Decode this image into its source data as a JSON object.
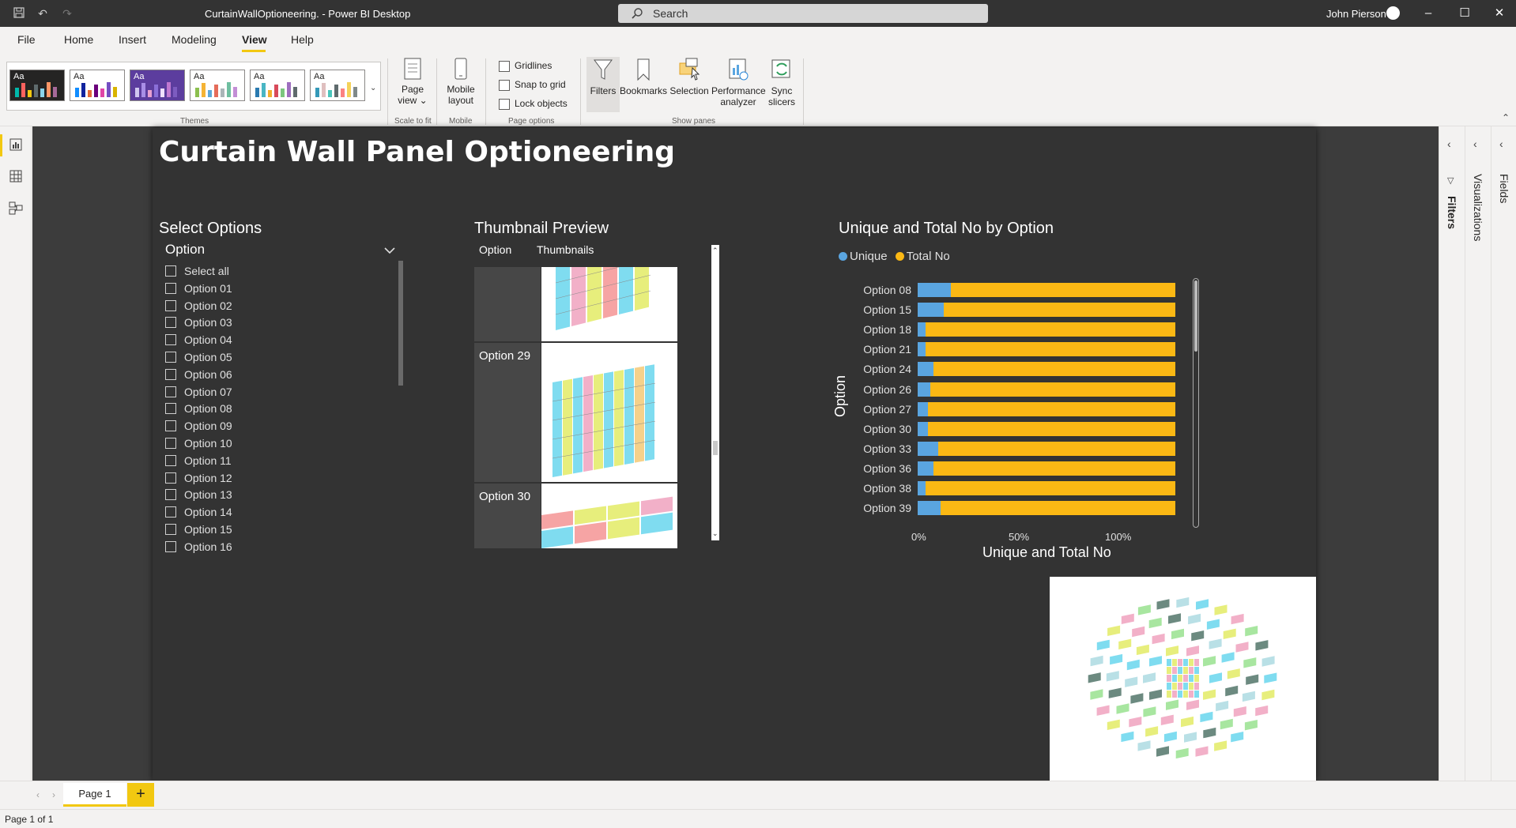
{
  "window": {
    "title": "CurtainWallOptioneering. - Power BI Desktop",
    "search_placeholder": "Search",
    "user_name": "John Pierson"
  },
  "menu": {
    "items": [
      "File",
      "Home",
      "Insert",
      "Modeling",
      "View",
      "Help"
    ],
    "active": "View"
  },
  "ribbon": {
    "theme_label": "Aa",
    "groups": {
      "themes": "Themes",
      "scale_to_fit": "Scale to fit",
      "mobile": "Mobile",
      "page_options": "Page options",
      "show_panes": "Show panes"
    },
    "page_view_line1": "Page",
    "page_view_line2": "view",
    "mobile_layout_line1": "Mobile",
    "mobile_layout_line2": "layout",
    "gridlines": "Gridlines",
    "snap_to_grid": "Snap to grid",
    "lock_objects": "Lock objects",
    "filters": "Filters",
    "bookmarks": "Bookmarks",
    "selection": "Selection",
    "performance_line1": "Performance",
    "performance_line2": "analyzer",
    "sync_line1": "Sync",
    "sync_line2": "slicers"
  },
  "report": {
    "title": "Curtain Wall Panel Optioneering",
    "slicer": {
      "title": "Select Options",
      "header": "Option",
      "items": [
        "Select all",
        "Option 01",
        "Option 02",
        "Option 03",
        "Option 04",
        "Option 05",
        "Option 06",
        "Option 07",
        "Option 08",
        "Option 09",
        "Option 10",
        "Option 11",
        "Option 12",
        "Option 13",
        "Option 14",
        "Option 15",
        "Option 16"
      ]
    },
    "thumbnails": {
      "title": "Thumbnail Preview",
      "col_option": "Option",
      "col_thumbnails": "Thumbnails",
      "rows": [
        "",
        "Option 29",
        "Option 30"
      ]
    },
    "chart": {
      "title": "Unique and Total No by Option",
      "legend_unique": "Unique",
      "legend_total": "Total No",
      "ylabel": "Option",
      "xlabel": "Unique and Total No",
      "x_ticks": [
        "0%",
        "50%",
        "100%"
      ]
    }
  },
  "chart_data": {
    "type": "bar",
    "orientation": "horizontal",
    "stacked": "100%",
    "title": "Unique and Total No by Option",
    "xlabel": "Unique and Total No",
    "ylabel": "Option",
    "xlim": [
      0,
      100
    ],
    "categories": [
      "Option 08",
      "Option 15",
      "Option 18",
      "Option 21",
      "Option 24",
      "Option 26",
      "Option 27",
      "Option 30",
      "Option 33",
      "Option 36",
      "Option 38",
      "Option 39"
    ],
    "series": [
      {
        "name": "Unique",
        "color": "#5aa5e0",
        "values": [
          13,
          10,
          3,
          3,
          6,
          5,
          4,
          4,
          8,
          6,
          3,
          9
        ]
      },
      {
        "name": "Total No",
        "color": "#fbb814",
        "values": [
          87,
          90,
          97,
          97,
          94,
          95,
          96,
          96,
          92,
          94,
          97,
          91
        ]
      }
    ],
    "legend_position": "top-left",
    "grid": false
  },
  "panes": {
    "filters": "Filters",
    "visualizations": "Visualizations",
    "fields": "Fields"
  },
  "tabs": {
    "page1": "Page 1",
    "add": "+"
  },
  "status": {
    "page_info": "Page 1 of 1"
  }
}
